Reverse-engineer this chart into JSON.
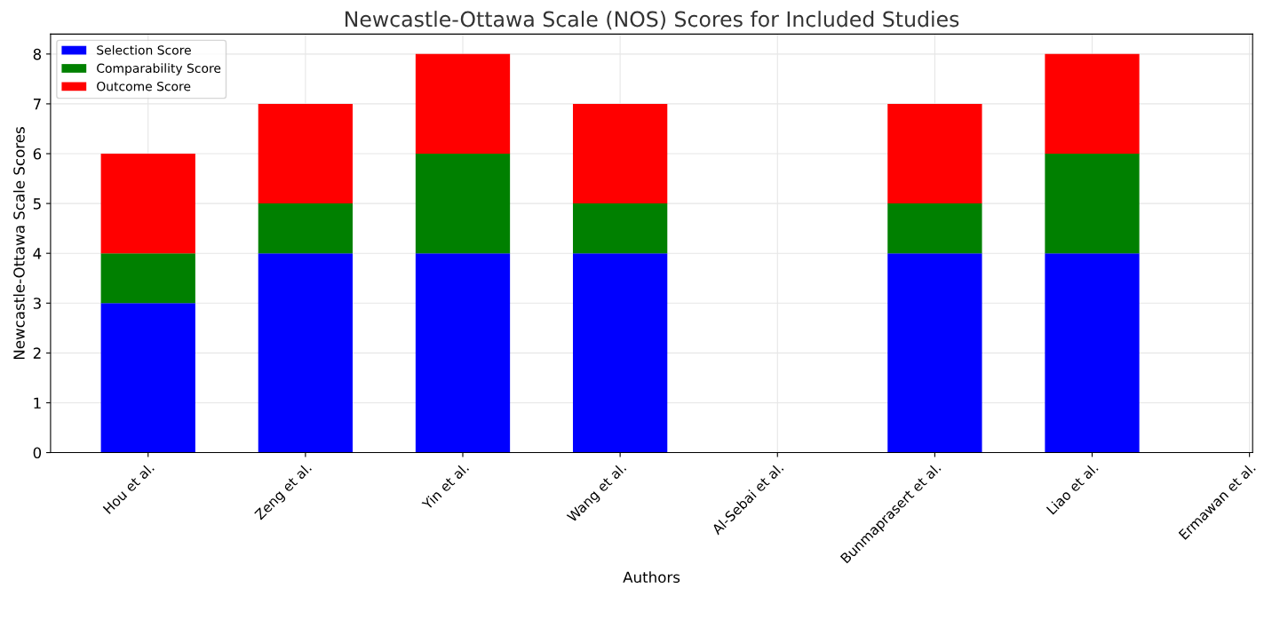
{
  "chart_data": {
    "type": "bar",
    "stacked": true,
    "title": "Newcastle-Ottawa Scale (NOS) Scores for Included Studies",
    "xlabel": "Authors",
    "ylabel": "Newcastle-Ottawa Scale Scores",
    "categories": [
      "Hou et al.",
      "Zeng et al.",
      "Yin et al.",
      "Wang et al.",
      "Al-Sebai et al.",
      "Bunmaprasert et al.",
      "Liao et al.",
      "Ermawan et al."
    ],
    "series": [
      {
        "name": "Selection Score",
        "color": "#0000ff",
        "values": [
          3,
          4,
          4,
          4,
          null,
          4,
          4,
          null
        ]
      },
      {
        "name": "Comparability Score",
        "color": "#008000",
        "values": [
          1,
          1,
          2,
          1,
          null,
          1,
          2,
          null
        ]
      },
      {
        "name": "Outcome Score",
        "color": "#ff0000",
        "values": [
          2,
          2,
          2,
          2,
          null,
          2,
          2,
          null
        ]
      }
    ],
    "ylim": [
      0,
      8.4
    ],
    "yticks": [
      0,
      1,
      2,
      3,
      4,
      5,
      6,
      7,
      8
    ],
    "grid": true,
    "legend": "top left"
  }
}
